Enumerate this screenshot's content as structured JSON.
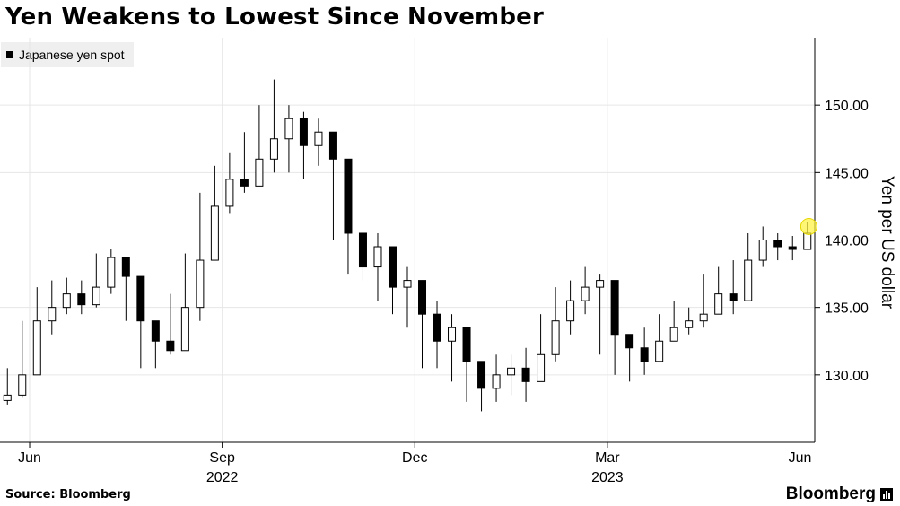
{
  "title": "Yen Weakens to Lowest Since November",
  "legend": {
    "label": "Japanese yen spot"
  },
  "source": "Source: Bloomberg",
  "brand": "Bloomberg",
  "chart_data": {
    "type": "candlestick",
    "title": "Yen Weakens to Lowest Since November",
    "ylabel": "Yen per US dollar",
    "ylim": [
      125,
      155
    ],
    "y_ticks": [
      "150.00",
      "145.00",
      "140.00",
      "135.00",
      "130.00"
    ],
    "y_tick_values": [
      150,
      145,
      140,
      135,
      130
    ],
    "x_ticks": [
      {
        "label": "Jun",
        "year": "2022",
        "week": 2
      },
      {
        "label": "Sep",
        "year": "",
        "week": 15
      },
      {
        "label": "Dec",
        "year": "",
        "week": 28
      },
      {
        "label": "Mar",
        "year": "2023",
        "week": 41
      },
      {
        "label": "Jun",
        "year": "",
        "week": 54
      }
    ],
    "year_labels": [
      {
        "label": "2022",
        "week": 15
      },
      {
        "label": "2023",
        "week": 41
      }
    ],
    "x_range_weeks": [
      0,
      55
    ],
    "series": [
      {
        "name": "Japanese yen spot",
        "close": [
          128.5,
          130.0,
          134.0,
          135.0,
          136.0,
          135.2,
          136.5,
          138.7,
          137.3,
          134.0,
          132.5,
          131.8,
          135.0,
          138.5,
          142.5,
          144.5,
          144.0,
          146.0,
          147.5,
          149.0,
          147.0,
          148.0,
          146.0,
          140.5,
          138.0,
          139.5,
          136.5,
          137.0,
          134.5,
          132.5,
          133.5,
          131.0,
          129.0,
          130.0,
          130.5,
          129.5,
          131.5,
          134.0,
          135.5,
          136.5,
          137.0,
          133.0,
          132.0,
          131.0,
          132.5,
          133.5,
          134.0,
          134.5,
          136.0,
          135.5,
          138.5,
          140.0,
          139.5,
          139.3,
          140.5
        ],
        "high": [
          130.5,
          134.0,
          136.5,
          137.0,
          137.2,
          137.0,
          139.0,
          139.3,
          138.0,
          135.0,
          133.5,
          136.0,
          139.0,
          143.5,
          145.5,
          146.5,
          148.0,
          150.0,
          151.9,
          150.0,
          149.5,
          149.0,
          148.0,
          142.5,
          140.0,
          140.5,
          138.0,
          138.0,
          136.0,
          135.5,
          134.5,
          133.0,
          130.5,
          131.5,
          131.5,
          132.0,
          134.5,
          136.5,
          137.0,
          138.0,
          137.5,
          134.0,
          133.0,
          133.5,
          134.5,
          135.5,
          135.0,
          137.5,
          138.0,
          138.5,
          140.5,
          141.0,
          140.5,
          140.3,
          141.3
        ],
        "low": [
          127.8,
          128.3,
          131.0,
          133.0,
          134.5,
          134.5,
          135.0,
          136.0,
          134.0,
          130.5,
          130.5,
          131.5,
          132.0,
          134.0,
          140.0,
          142.0,
          143.5,
          144.5,
          145.0,
          145.0,
          144.5,
          145.5,
          140.0,
          137.5,
          137.0,
          135.5,
          134.5,
          133.5,
          130.5,
          130.5,
          129.5,
          128.0,
          127.3,
          128.0,
          128.5,
          128.0,
          129.5,
          131.0,
          133.0,
          134.5,
          131.5,
          130.0,
          129.5,
          130.0,
          131.0,
          132.5,
          133.0,
          133.5,
          135.0,
          134.5,
          135.5,
          138.0,
          138.5,
          138.5,
          139.5
        ]
      }
    ],
    "highlight": {
      "week": 54,
      "value": 141.0
    },
    "grid": "vertical",
    "legend_position": "top-left"
  }
}
